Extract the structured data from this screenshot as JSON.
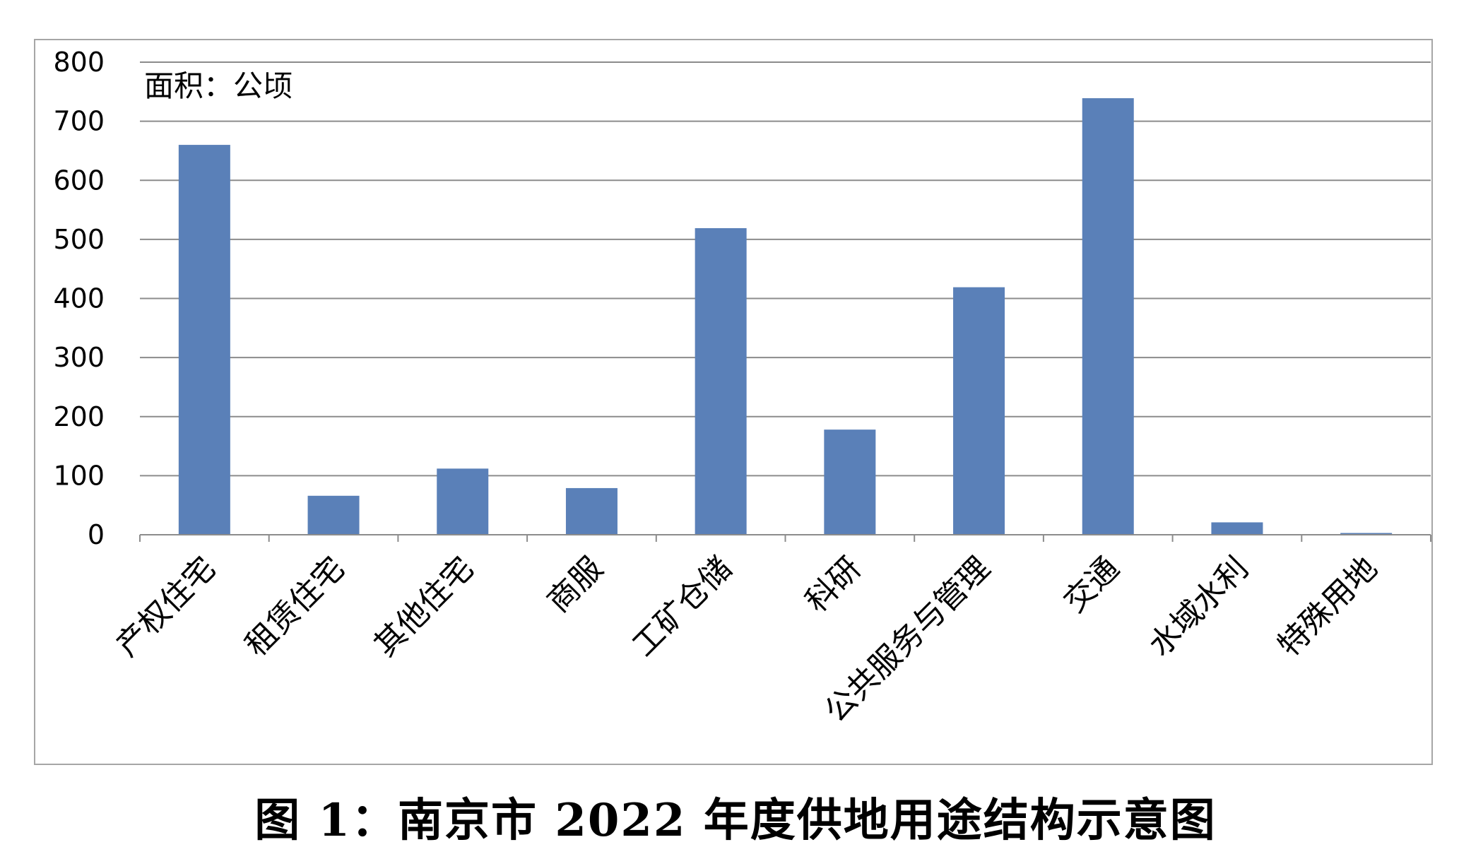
{
  "caption": "图 1：南京市 2022 年度供地用途结构示意图",
  "chart_data": {
    "type": "bar",
    "unit_label": "面积：公顷",
    "categories": [
      "产权住宅",
      "租赁住宅",
      "其他住宅",
      "商服",
      "工矿仓储",
      "科研",
      "公共服务与管理",
      "交通",
      "水域水利",
      "特殊用地"
    ],
    "values": [
      660,
      66,
      112,
      79,
      519,
      178,
      419,
      739,
      21,
      3
    ],
    "yticks": [
      0,
      100,
      200,
      300,
      400,
      500,
      600,
      700,
      800
    ],
    "ylim": [
      0,
      800
    ],
    "grid": true,
    "bar_color": "#5a80b8",
    "grid_color": "#8c8c8c"
  }
}
